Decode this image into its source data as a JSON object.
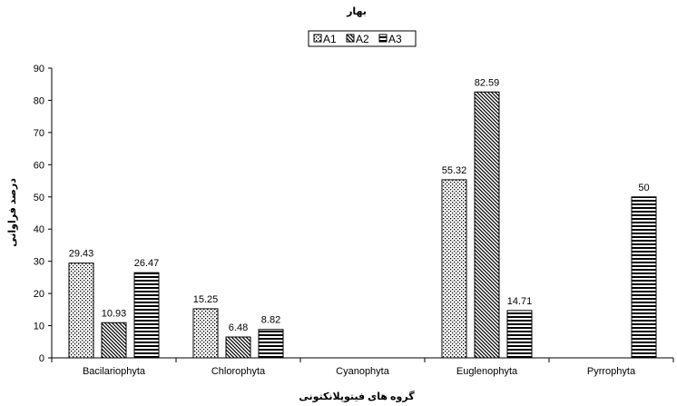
{
  "chart_data": {
    "type": "bar",
    "title": "بهار",
    "xlabel": "گروه های فیتوپلانکتونی",
    "ylabel": "درصد فراوانی",
    "categories": [
      "Bacilariophyta",
      "Chlorophyta",
      "Cyanophyta",
      "Euglenophyta",
      "Pyrrophyta"
    ],
    "series": [
      {
        "name": "A1",
        "values": [
          29.43,
          15.25,
          null,
          55.32,
          null
        ],
        "labels": [
          "29.43",
          "15.25",
          "",
          "55.32",
          ""
        ],
        "pattern": "dots"
      },
      {
        "name": "A2",
        "values": [
          10.93,
          6.48,
          null,
          82.59,
          null
        ],
        "labels": [
          "10.93",
          "6.48",
          "",
          "82.59",
          ""
        ],
        "pattern": "diagonal"
      },
      {
        "name": "A3",
        "values": [
          26.47,
          8.82,
          null,
          14.71,
          50
        ],
        "labels": [
          "26.47",
          "8.82",
          "",
          "14.71",
          "50"
        ],
        "pattern": "horizontal"
      }
    ],
    "ylim": [
      0,
      90
    ],
    "yticks": [
      "0",
      "10",
      "20",
      "30",
      "40",
      "50",
      "60",
      "70",
      "80",
      "90"
    ],
    "grid": false,
    "legend_position": "top"
  }
}
